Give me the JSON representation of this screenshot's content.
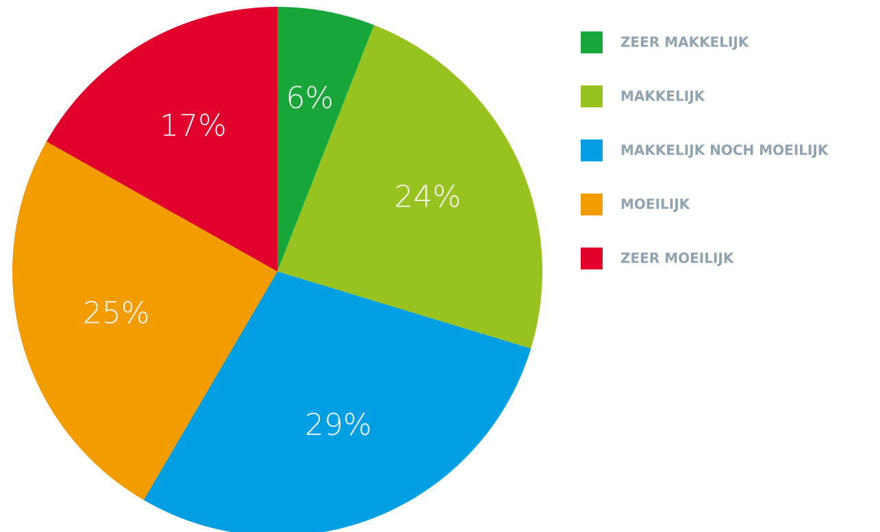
{
  "chart_data": {
    "type": "pie",
    "categories": [
      "ZEER MAKKELIJK",
      "MAKKELIJK",
      "MAKKELIJK NOCH MOEILIJK",
      "MOEILIJK",
      "ZEER MOEILIJK"
    ],
    "values": [
      6,
      24,
      29,
      25,
      17
    ],
    "value_labels": [
      "6%",
      "24%",
      "29%",
      "25%",
      "17%"
    ],
    "colors": [
      "#18a53a",
      "#97c21f",
      "#009fe3",
      "#f39c00",
      "#e2002d"
    ],
    "legend": "right"
  }
}
